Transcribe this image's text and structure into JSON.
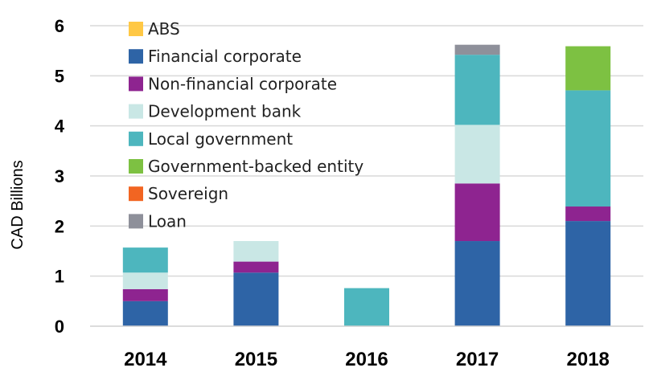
{
  "chart_data": {
    "type": "bar",
    "stacked": true,
    "title": "",
    "xlabel": "",
    "ylabel": "CAD Billions",
    "ylim": [
      0,
      6
    ],
    "yticks": [
      0,
      1,
      2,
      3,
      4,
      5,
      6
    ],
    "grid": "horizontal",
    "legend_position": "top-left",
    "categories": [
      "2014",
      "2015",
      "2016",
      "2017",
      "2018"
    ],
    "series": [
      {
        "name": "Financial corporate",
        "color": "#2E64A6",
        "values": [
          0.5,
          1.07,
          0,
          1.7,
          2.1
        ]
      },
      {
        "name": "Non-financial corporate",
        "color": "#8E2490",
        "values": [
          0.24,
          0.22,
          0,
          1.15,
          0.29
        ]
      },
      {
        "name": "Development bank",
        "color": "#C9E7E5",
        "values": [
          0.33,
          0.41,
          0,
          1.17,
          0
        ]
      },
      {
        "name": "Local government",
        "color": "#4DB6BE",
        "values": [
          0.5,
          0,
          0.76,
          1.4,
          2.32
        ]
      },
      {
        "name": "Government-backed entity",
        "color": "#7DC142",
        "values": [
          0,
          0,
          0,
          0,
          0.88
        ]
      },
      {
        "name": "Sovereign",
        "color": "#F26522",
        "values": [
          0,
          0,
          0,
          0,
          0
        ]
      },
      {
        "name": "ABS",
        "color": "#FFC845",
        "values": [
          0,
          0,
          0,
          0,
          0
        ]
      },
      {
        "name": "Loan",
        "color": "#8E909A",
        "values": [
          0,
          0,
          0,
          0.2,
          0
        ]
      }
    ],
    "legend_order": [
      "ABS",
      "Financial corporate",
      "Non-financial corporate",
      "Development bank",
      "Local government",
      "Government-backed entity",
      "Sovereign",
      "Loan"
    ]
  }
}
